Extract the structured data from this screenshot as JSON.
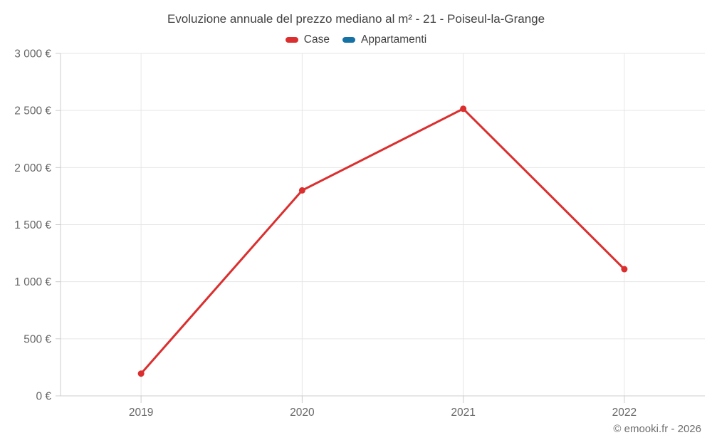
{
  "title": "Evoluzione annuale del prezzo mediano al m² - 21 - Poiseul-la-Grange",
  "legend": {
    "items": [
      {
        "label": "Case",
        "color": "#db2f2f"
      },
      {
        "label": "Appartamenti",
        "color": "#1672a5"
      }
    ]
  },
  "footer": {
    "credit": "© emooki.fr - 2026"
  },
  "colors": {
    "background": "#ffffff",
    "grid": "#e6e6e6",
    "axis": "#cccccc",
    "axis_text": "#666666",
    "title_text": "#424242",
    "footer_text": "#6e6e6e"
  },
  "chart_data": {
    "type": "line",
    "title": "Evoluzione annuale del prezzo mediano al m² - 21 - Poiseul-la-Grange",
    "xlabel": "",
    "ylabel": "",
    "categories": [
      "2019",
      "2020",
      "2021",
      "2022"
    ],
    "series": [
      {
        "name": "Case",
        "color": "#db2f2f",
        "values": [
          195,
          1800,
          2515,
          1110
        ]
      },
      {
        "name": "Appartamenti",
        "color": "#1672a5",
        "values": []
      }
    ],
    "ylim": [
      0,
      3000
    ],
    "yticks": [
      {
        "value": 0,
        "label": "0 €"
      },
      {
        "value": 500,
        "label": "500 €"
      },
      {
        "value": 1000,
        "label": "1 000 €"
      },
      {
        "value": 1500,
        "label": "1 500 €"
      },
      {
        "value": 2000,
        "label": "2 000 €"
      },
      {
        "value": 2500,
        "label": "2 500 €"
      },
      {
        "value": 3000,
        "label": "3 000 €"
      }
    ],
    "grid": true,
    "legend_position": "top",
    "unit": "€"
  }
}
